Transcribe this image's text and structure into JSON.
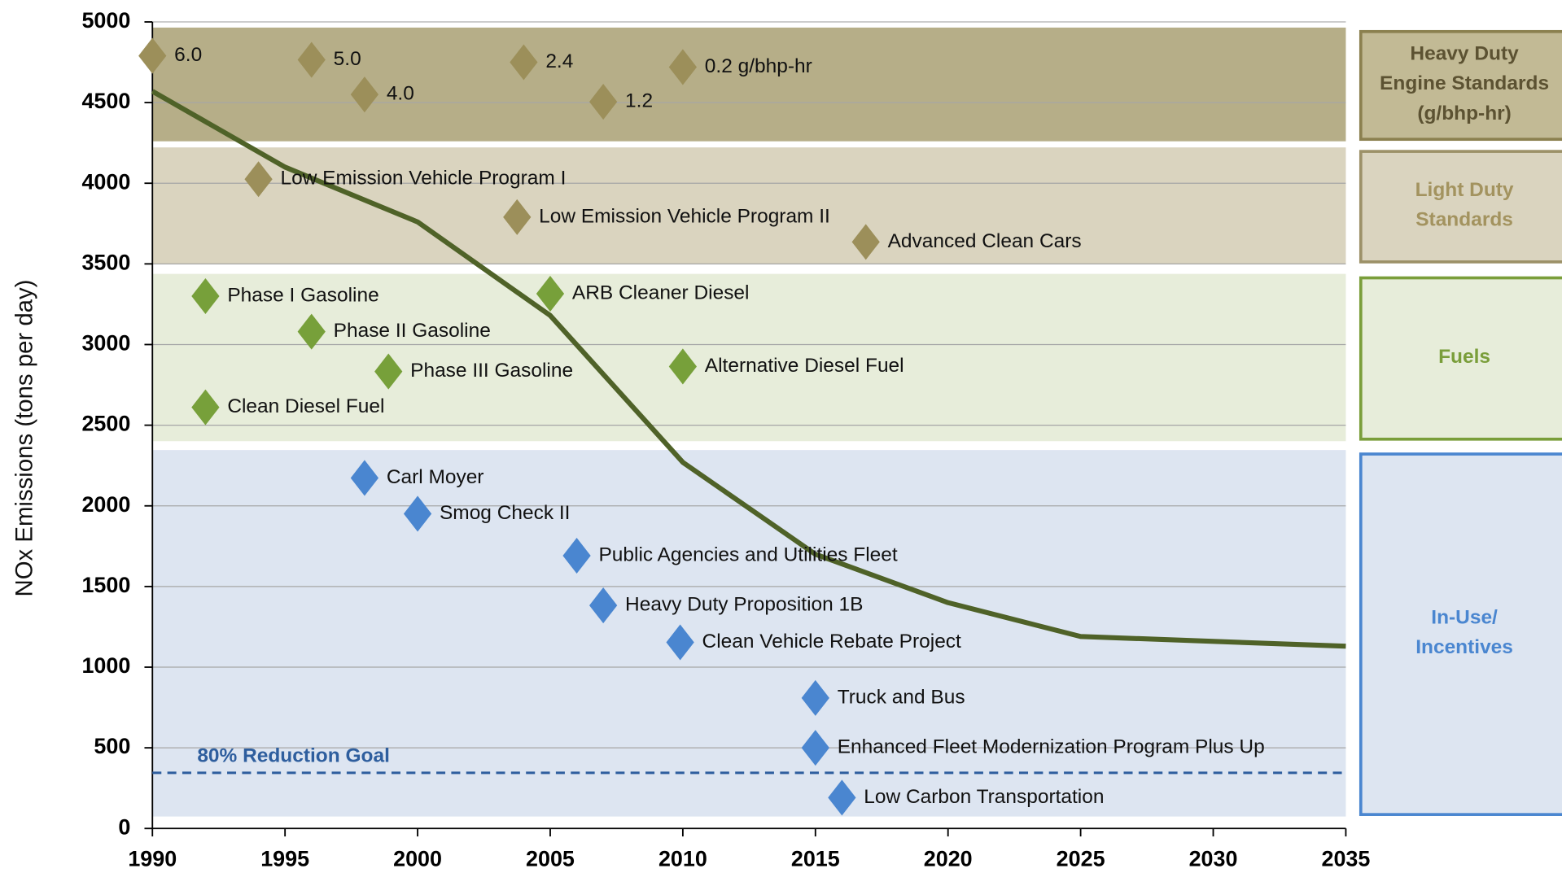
{
  "chart_data": {
    "type": "line",
    "y_label": "NOx Emissions (tons per day)",
    "xlim": [
      1990,
      2035
    ],
    "xticks": [
      1990,
      1995,
      2000,
      2005,
      2010,
      2015,
      2020,
      2025,
      2030,
      2035
    ],
    "ylim": [
      0,
      5000
    ],
    "yticks": [
      0,
      500,
      1000,
      1500,
      2000,
      2500,
      3000,
      3500,
      4000,
      4500,
      5000
    ],
    "grid": true,
    "series": [
      {
        "color": "#4f6228",
        "x": [
          1990,
          1995,
          2000,
          2005,
          2010,
          2015,
          2020,
          2025,
          2035
        ],
        "values": [
          4570,
          4100,
          3760,
          3180,
          2270,
          1700,
          1400,
          1190,
          1130
        ]
      }
    ],
    "goal": {
      "label": "80% Reduction Goal",
      "value": 345,
      "color": "#2e5e9e"
    },
    "groups": [
      {
        "label_lines": [
          "Heavy Duty",
          "Engine Standards",
          "(g/bhp-hr)"
        ],
        "range": [
          4260,
          4965
        ],
        "band_color": "#b6ae88",
        "box_color": "#c2ba95",
        "border_color": "#8b804f",
        "text_color": "#5c5232",
        "marker_color": "#9c8f5a",
        "markers": [
          {
            "label": "6.0",
            "x": 1990,
            "y": 4790
          },
          {
            "label": "5.0",
            "x": 1996,
            "y": 4765
          },
          {
            "label": "4.0",
            "x": 1998,
            "y": 4550
          },
          {
            "label": "2.4",
            "x": 2004,
            "y": 4750
          },
          {
            "label": "1.2",
            "x": 2007,
            "y": 4505
          },
          {
            "label": "0.2 g/bhp-hr",
            "x": 2010,
            "y": 4720
          }
        ]
      },
      {
        "label_lines": [
          "Light Duty",
          "Standards"
        ],
        "range": [
          3500,
          4222
        ],
        "band_color": "#dad4bf",
        "box_color": "#dad4bf",
        "border_color": "#9c9168",
        "text_color": "#a3935f",
        "marker_color": "#9c8f5a",
        "markers": [
          {
            "label": "Low Emission Vehicle Program I",
            "x": 1994,
            "y": 4025
          },
          {
            "label": "Low Emission Vehicle Program II",
            "x": 2003.75,
            "y": 3790
          },
          {
            "label": "Advanced Clean Cars",
            "x": 2016.9,
            "y": 3636
          }
        ]
      },
      {
        "label_lines": [
          "Fuels"
        ],
        "range": [
          2401,
          3438
        ],
        "band_color": "#e7edda",
        "box_color": "#e7edda",
        "border_color": "#7a9e3a",
        "text_color": "#7a9e3a",
        "marker_color": "#77a03a",
        "markers": [
          {
            "label": "Phase I Gasoline",
            "x": 1992,
            "y": 3300
          },
          {
            "label": "Phase II Gasoline",
            "x": 1996,
            "y": 3080
          },
          {
            "label": "Phase III Gasoline",
            "x": 1998.9,
            "y": 2833
          },
          {
            "label": "Clean Diesel Fuel",
            "x": 1992,
            "y": 2611
          },
          {
            "label": "ARB Cleaner Diesel",
            "x": 2005,
            "y": 3315
          },
          {
            "label": "Alternative Diesel Fuel",
            "x": 2010,
            "y": 2864
          }
        ]
      },
      {
        "label_lines": [
          "In-Use/",
          "Incentives"
        ],
        "range": [
          74,
          2346
        ],
        "band_color": "#dde5f1",
        "box_color": "#dde5f1",
        "border_color": "#4a86d0",
        "text_color": "#4a86d0",
        "marker_color": "#4a86d0",
        "markers": [
          {
            "label": "Carl Moyer",
            "x": 1998,
            "y": 2173
          },
          {
            "label": "Smog Check II",
            "x": 2000,
            "y": 1951
          },
          {
            "label": "Public Agencies and Utilities Fleet",
            "x": 2006,
            "y": 1691
          },
          {
            "label": "Heavy Duty Proposition 1B",
            "x": 2007,
            "y": 1383
          },
          {
            "label": "Clean Vehicle Rebate Project",
            "x": 2009.9,
            "y": 1154
          },
          {
            "label": "Truck and Bus",
            "x": 2015,
            "y": 809
          },
          {
            "label": "Enhanced Fleet Modernization Program Plus Up",
            "x": 2015,
            "y": 500
          },
          {
            "label": "Low Carbon Transportation",
            "x": 2016,
            "y": 191
          }
        ]
      }
    ]
  }
}
